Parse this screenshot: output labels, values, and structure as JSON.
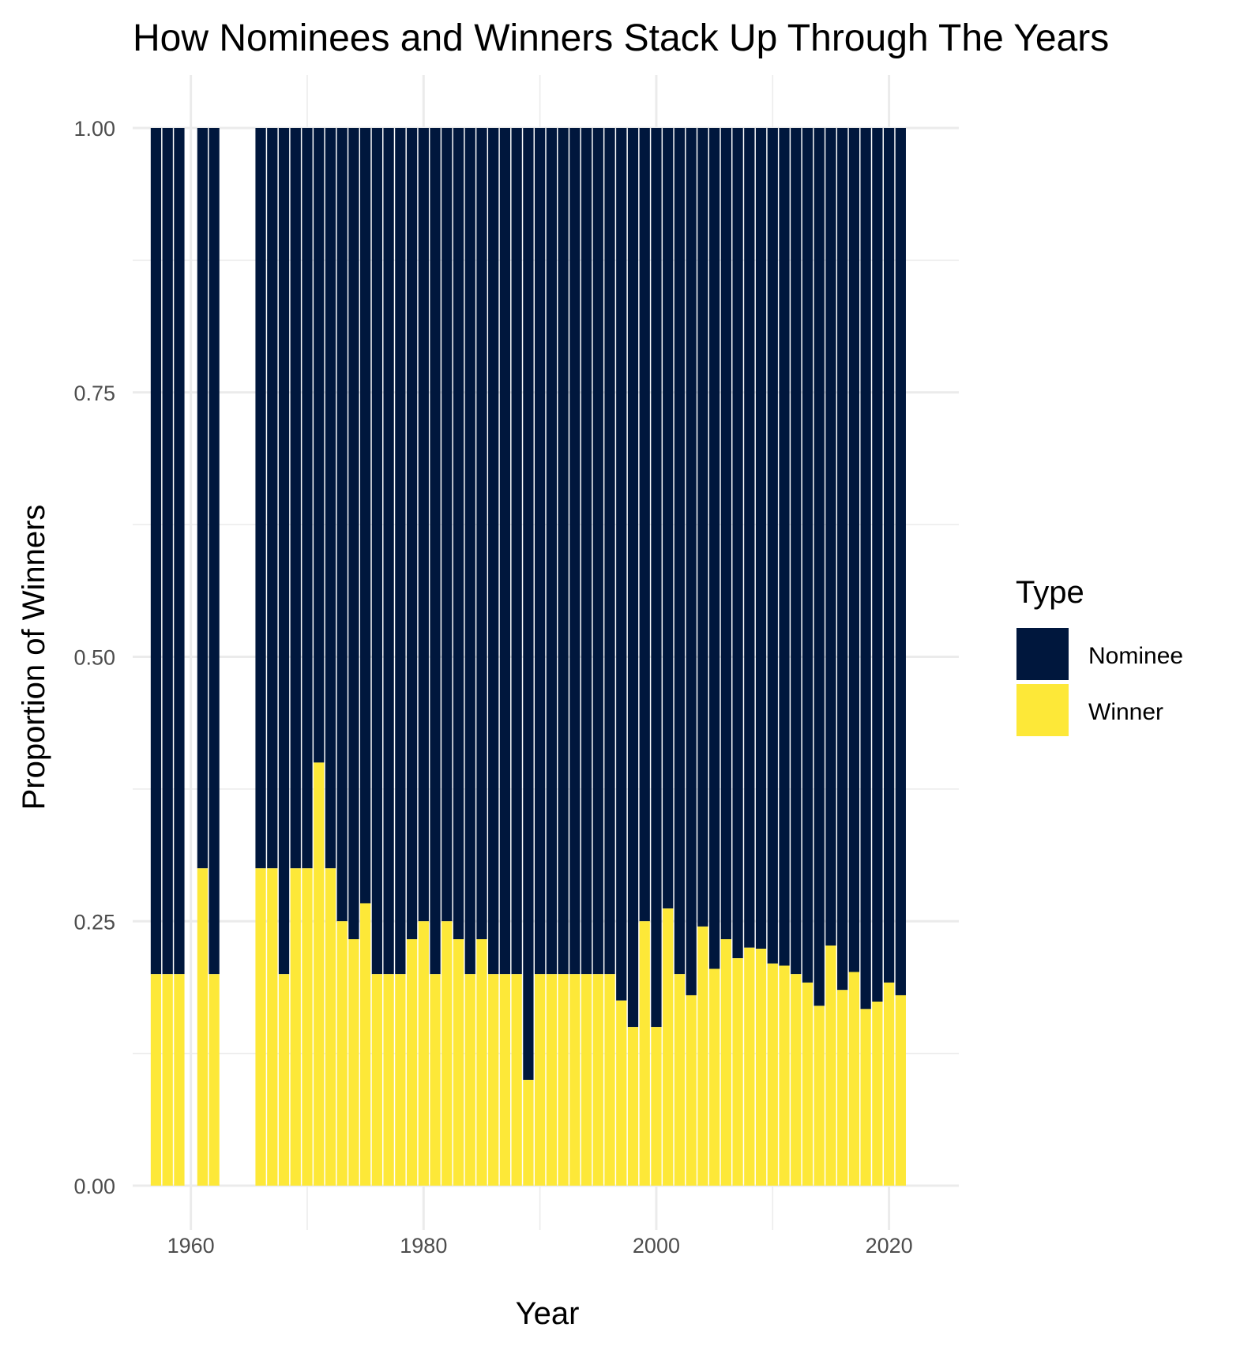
{
  "chart_data": {
    "type": "bar",
    "stacked": "proportion",
    "title": "How Nominees and Winners Stack Up Through The Years",
    "xlabel": "Year",
    "ylabel": "Proportion of Winners",
    "xlim": [
      1955,
      2026
    ],
    "ylim": [
      0,
      1
    ],
    "x_ticks": [
      1960,
      1980,
      2000,
      2020
    ],
    "x_tick_labels": [
      "1960",
      "1980",
      "2000",
      "2020"
    ],
    "y_ticks": [
      0,
      0.25,
      0.5,
      0.75,
      1
    ],
    "y_tick_labels": [
      "0.00",
      "0.25",
      "0.50",
      "0.75",
      "1.00"
    ],
    "grid": true,
    "legend": {
      "title": "Type",
      "position": "right"
    },
    "x": [
      1957,
      1958,
      1959,
      1961,
      1962,
      1966,
      1967,
      1968,
      1969,
      1970,
      1971,
      1972,
      1973,
      1974,
      1975,
      1976,
      1977,
      1978,
      1979,
      1980,
      1981,
      1982,
      1983,
      1984,
      1985,
      1986,
      1987,
      1988,
      1989,
      1990,
      1991,
      1992,
      1993,
      1994,
      1995,
      1996,
      1997,
      1998,
      1999,
      2000,
      2001,
      2002,
      2003,
      2004,
      2005,
      2006,
      2007,
      2008,
      2009,
      2010,
      2011,
      2012,
      2013,
      2014,
      2015,
      2016,
      2017,
      2018,
      2019,
      2020,
      2021
    ],
    "series": [
      {
        "name": "Nominee",
        "color": "#00173d",
        "values": [
          0.8,
          0.8,
          0.8,
          0.7,
          0.8,
          0.7,
          0.7,
          0.8,
          0.7,
          0.7,
          0.6,
          0.7,
          0.75,
          0.767,
          0.733,
          0.8,
          0.8,
          0.8,
          0.767,
          0.75,
          0.8,
          0.75,
          0.767,
          0.8,
          0.767,
          0.8,
          0.8,
          0.8,
          0.9,
          0.8,
          0.8,
          0.8,
          0.8,
          0.8,
          0.8,
          0.8,
          0.825,
          0.85,
          0.75,
          0.85,
          0.738,
          0.8,
          0.82,
          0.755,
          0.795,
          0.767,
          0.785,
          0.775,
          0.776,
          0.79,
          0.792,
          0.8,
          0.808,
          0.83,
          0.773,
          0.815,
          0.798,
          0.833,
          0.826,
          0.808,
          0.82
        ]
      },
      {
        "name": "Winner",
        "color": "#fde838",
        "values": [
          0.2,
          0.2,
          0.2,
          0.3,
          0.2,
          0.3,
          0.3,
          0.2,
          0.3,
          0.3,
          0.4,
          0.3,
          0.25,
          0.233,
          0.267,
          0.2,
          0.2,
          0.2,
          0.233,
          0.25,
          0.2,
          0.25,
          0.233,
          0.2,
          0.233,
          0.2,
          0.2,
          0.2,
          0.1,
          0.2,
          0.2,
          0.2,
          0.2,
          0.2,
          0.2,
          0.2,
          0.175,
          0.15,
          0.25,
          0.15,
          0.262,
          0.2,
          0.18,
          0.245,
          0.205,
          0.233,
          0.215,
          0.225,
          0.224,
          0.21,
          0.208,
          0.2,
          0.192,
          0.17,
          0.227,
          0.185,
          0.202,
          0.167,
          0.174,
          0.192,
          0.18
        ]
      }
    ]
  }
}
